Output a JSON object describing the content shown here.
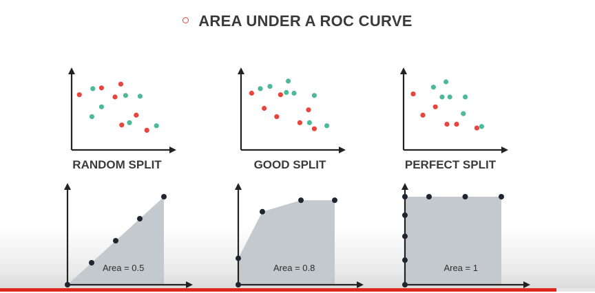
{
  "header": {
    "title": "AREA UNDER A ROC CURVE"
  },
  "colors": {
    "axis": "#222222",
    "red": "#e8453c",
    "green": "#4db89a",
    "area": "#c4c9ce",
    "curve_point": "#1f2630"
  },
  "progress": {
    "fraction": 0.935
  },
  "chart_data": [
    {
      "type": "scatter",
      "label": "RANDOM SPLIT",
      "xlim": [
        0,
        10
      ],
      "ylim": [
        0,
        10
      ],
      "series": [
        {
          "color": "red",
          "points": [
            [
              0.8,
              7.3
            ],
            [
              3.1,
              8.2
            ],
            [
              4.5,
              7.0
            ],
            [
              5.1,
              8.7
            ],
            [
              5.2,
              3.3
            ],
            [
              6.7,
              4.6
            ],
            [
              7.8,
              2.6
            ]
          ]
        },
        {
          "color": "green",
          "points": [
            [
              2.2,
              8.1
            ],
            [
              2.1,
              4.4
            ],
            [
              3.1,
              5.7
            ],
            [
              5.6,
              7.2
            ],
            [
              6.0,
              3.6
            ],
            [
              7.1,
              7.1
            ],
            [
              8.8,
              3.2
            ]
          ]
        }
      ]
    },
    {
      "type": "scatter",
      "label": "GOOD SPLIT",
      "xlim": [
        0,
        10
      ],
      "ylim": [
        0,
        10
      ],
      "series": [
        {
          "color": "red",
          "points": [
            [
              1.1,
              7.5
            ],
            [
              2.4,
              5.5
            ],
            [
              3.7,
              4.4
            ],
            [
              4.1,
              7.3
            ],
            [
              6.1,
              3.6
            ],
            [
              7.0,
              5.3
            ],
            [
              7.6,
              2.8
            ]
          ]
        },
        {
          "color": "green",
          "points": [
            [
              2.0,
              8.1
            ],
            [
              3.0,
              8.4
            ],
            [
              4.7,
              7.6
            ],
            [
              4.9,
              9.1
            ],
            [
              5.5,
              7.5
            ],
            [
              7.1,
              3.6
            ],
            [
              7.6,
              7.2
            ],
            [
              8.9,
              3.2
            ]
          ]
        }
      ]
    },
    {
      "type": "scatter",
      "label": "PERFECT SPLIT",
      "xlim": [
        0,
        10
      ],
      "ylim": [
        0,
        10
      ],
      "series": [
        {
          "color": "red",
          "points": [
            [
              1.0,
              7.4
            ],
            [
              2.0,
              4.6
            ],
            [
              3.3,
              5.7
            ],
            [
              4.5,
              3.4
            ],
            [
              5.5,
              3.4
            ],
            [
              7.6,
              2.9
            ]
          ]
        },
        {
          "color": "green",
          "points": [
            [
              3.1,
              8.3
            ],
            [
              4.0,
              7.0
            ],
            [
              4.4,
              9.0
            ],
            [
              4.8,
              7.0
            ],
            [
              6.2,
              4.8
            ],
            [
              6.4,
              7.0
            ],
            [
              8.1,
              3.1
            ]
          ]
        }
      ]
    },
    {
      "type": "area",
      "area_label": "Area = 0.5",
      "xlim": [
        0,
        1
      ],
      "ylim": [
        0,
        1
      ],
      "x": [
        0,
        0.25,
        0.5,
        0.75,
        1.0
      ],
      "y": [
        0,
        0.25,
        0.5,
        0.75,
        1.0
      ]
    },
    {
      "type": "area",
      "area_label": "Area = 0.8",
      "xlim": [
        0,
        1
      ],
      "ylim": [
        0,
        1
      ],
      "x": [
        0,
        0,
        0.25,
        0.65,
        1.0
      ],
      "y": [
        0,
        0.3,
        0.83,
        0.96,
        0.96
      ]
    },
    {
      "type": "area",
      "area_label": "Area = 1",
      "xlim": [
        0,
        1
      ],
      "ylim": [
        0,
        1
      ],
      "x": [
        0,
        0,
        0,
        0,
        0,
        0.25,
        0.625,
        1.0
      ],
      "y": [
        0,
        0.28,
        0.55,
        0.79,
        1.0,
        1.0,
        1.0,
        1.0
      ]
    }
  ]
}
